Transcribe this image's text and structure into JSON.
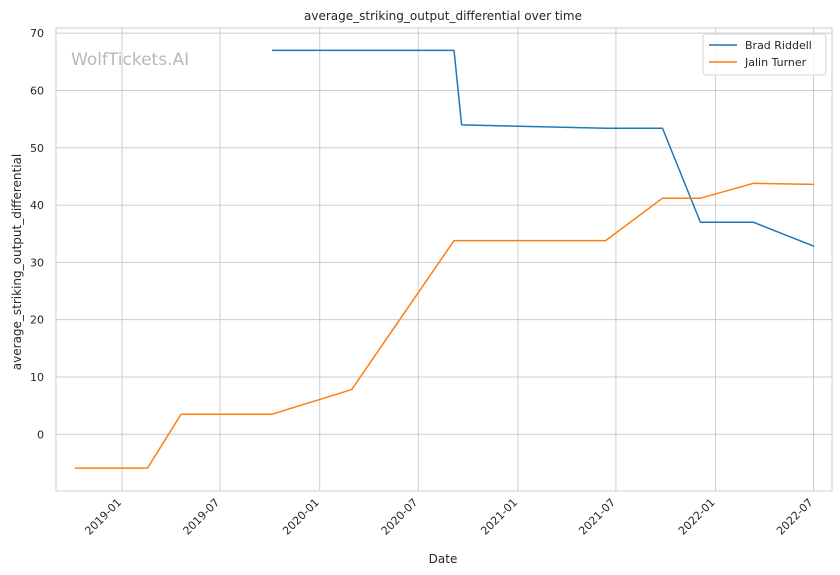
{
  "watermark": "WolfTickets.AI",
  "chart_data": {
    "type": "line",
    "title": "average_striking_output_differential over time",
    "xlabel": "Date",
    "ylabel": "average_striking_output_differential",
    "x_type": "date",
    "xlim": [
      "2018-09-01",
      "2022-08-04"
    ],
    "ylim": [
      -9.9,
      70.9
    ],
    "xticks": [
      "2019-01",
      "2019-07",
      "2020-01",
      "2020-07",
      "2021-01",
      "2021-07",
      "2022-01",
      "2022-07"
    ],
    "yticks": [
      0,
      10,
      20,
      30,
      40,
      50,
      60,
      70
    ],
    "grid": true,
    "legend_position": "top-right",
    "series": [
      {
        "name": "Brad Riddell",
        "color": "#1f77b4",
        "points": [
          [
            "2019-10-05",
            67.0
          ],
          [
            "2020-09-05",
            67.0
          ],
          [
            "2020-09-19",
            54.0
          ],
          [
            "2021-06-12",
            53.4
          ],
          [
            "2021-09-25",
            53.4
          ],
          [
            "2021-12-04",
            37.0
          ],
          [
            "2022-03-12",
            37.0
          ],
          [
            "2022-07-02",
            32.8
          ]
        ]
      },
      {
        "name": "Jalin Turner",
        "color": "#ff7f0e",
        "points": [
          [
            "2018-10-06",
            -5.9
          ],
          [
            "2019-02-17",
            -5.9
          ],
          [
            "2019-04-20",
            3.5
          ],
          [
            "2019-10-05",
            3.5
          ],
          [
            "2020-02-29",
            7.8
          ],
          [
            "2020-09-05",
            33.8
          ],
          [
            "2021-06-12",
            33.8
          ],
          [
            "2021-09-25",
            41.2
          ],
          [
            "2021-12-04",
            41.2
          ],
          [
            "2022-03-12",
            43.8
          ],
          [
            "2022-07-02",
            43.6
          ]
        ]
      }
    ]
  }
}
